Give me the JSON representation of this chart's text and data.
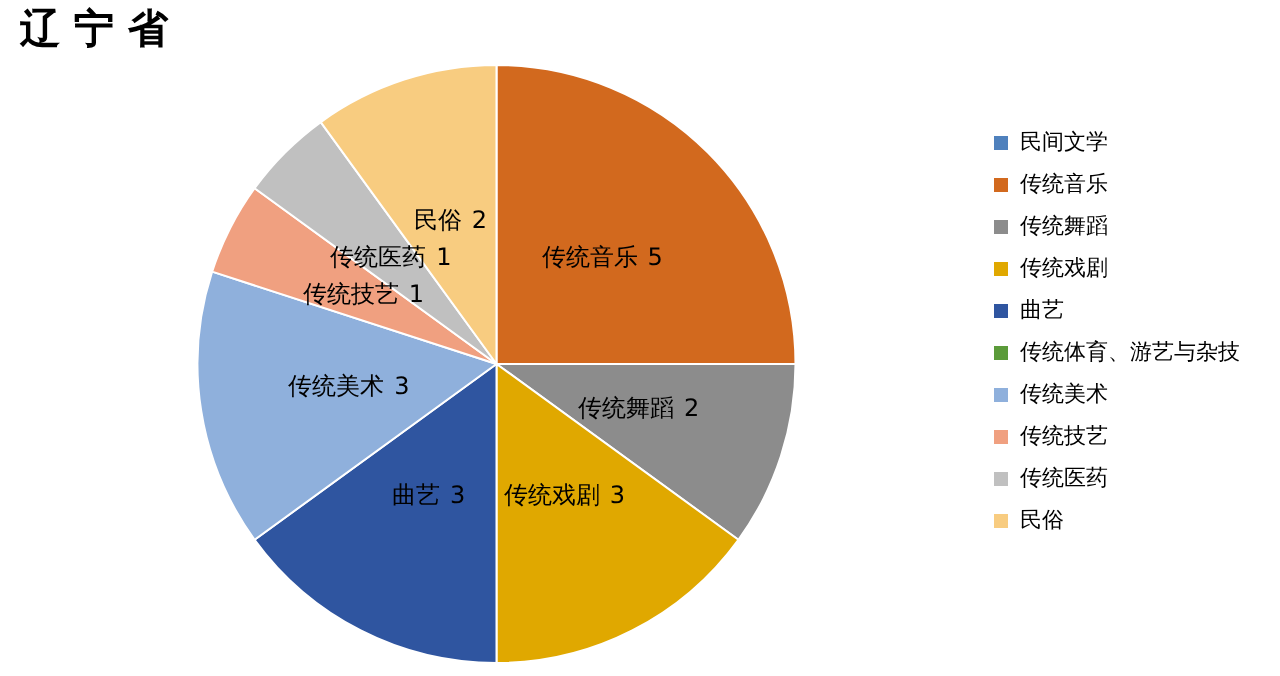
{
  "chart_data": {
    "type": "pie",
    "title": "辽 宁 省",
    "categories": [
      "民间文学",
      "传统音乐",
      "传统舞蹈",
      "传统戏剧",
      "曲艺",
      "传统体育、游艺与杂技",
      "传统美术",
      "传统技艺",
      "传统医药",
      "民俗"
    ],
    "values": [
      0,
      5,
      2,
      3,
      3,
      0,
      3,
      1,
      1,
      2
    ],
    "colors": [
      "#4f81bd",
      "#d2691e",
      "#8c8c8c",
      "#e0a800",
      "#2f55a0",
      "#5b9b3a",
      "#8fb0dc",
      "#f0a080",
      "#c0c0c0",
      "#f8cc80"
    ],
    "data_labels": true,
    "legend": "right"
  }
}
